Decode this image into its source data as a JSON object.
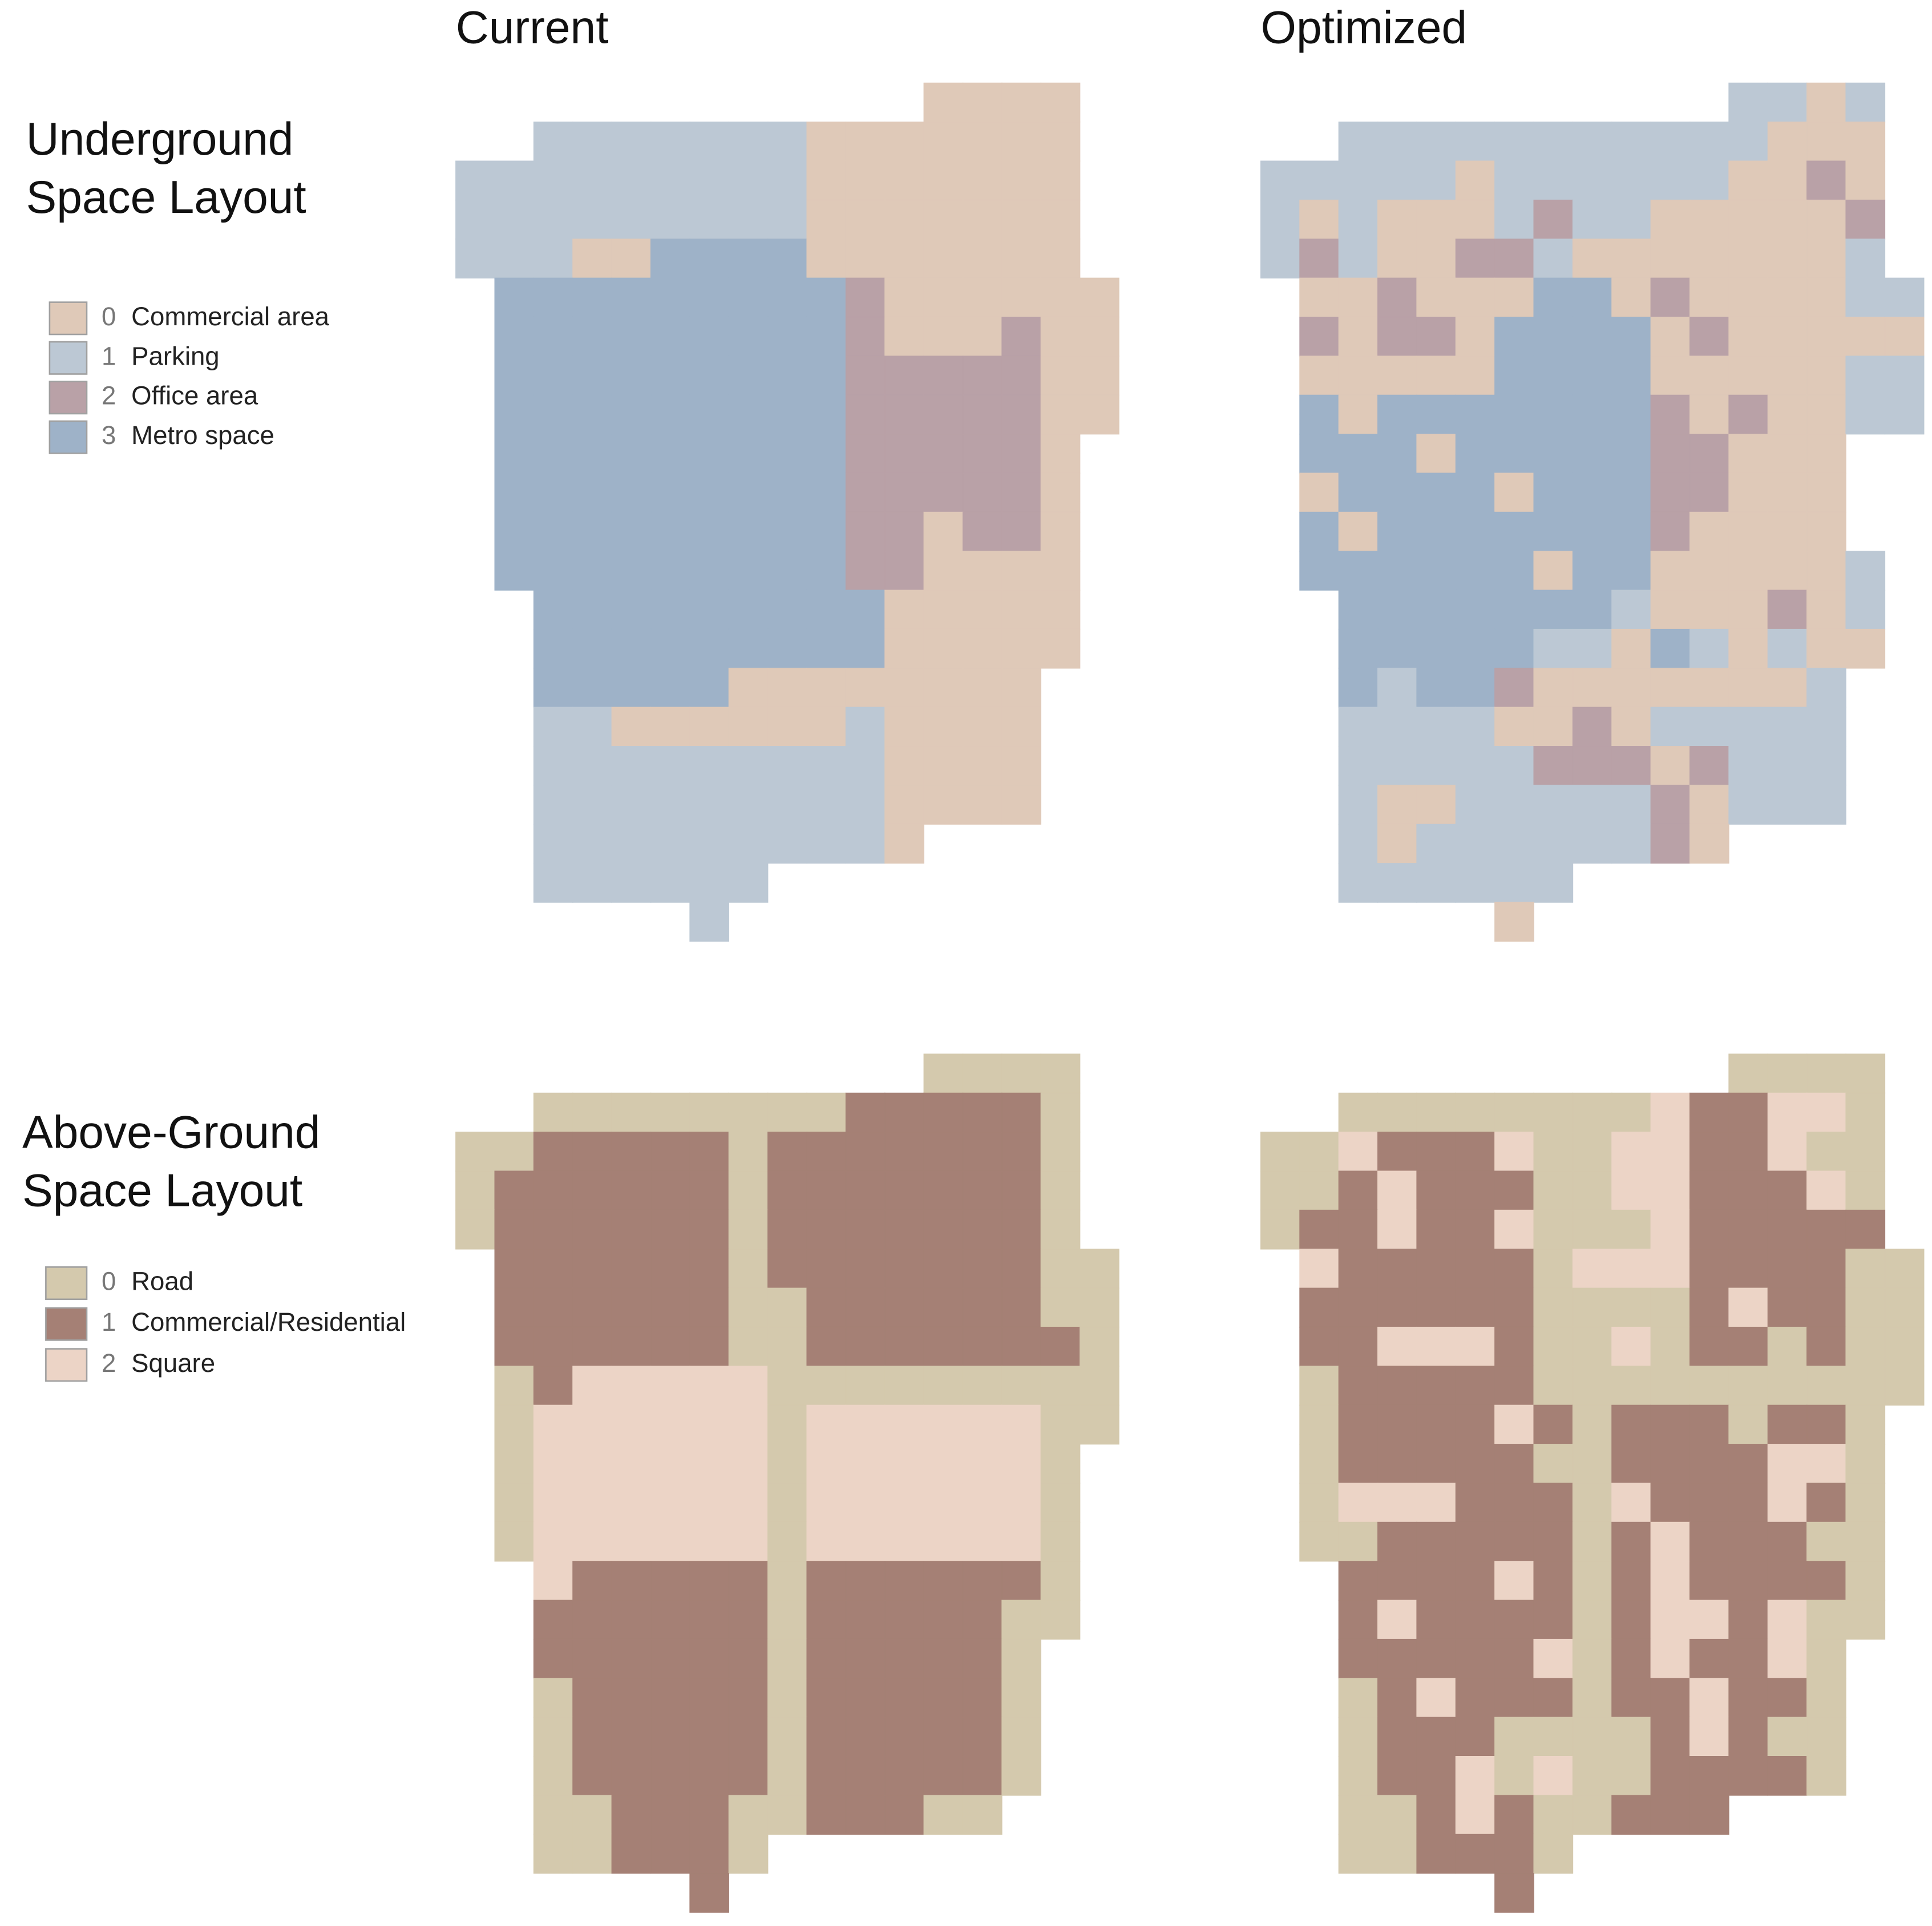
{
  "columns": [
    "Current",
    "Optimized"
  ],
  "rows": [
    {
      "title_lines": [
        "Underground",
        "Space Layout"
      ],
      "legend": [
        {
          "code": 0,
          "label": "Commercial area",
          "color": "#dfc9b8"
        },
        {
          "code": 1,
          "label": "Parking",
          "color": "#bcc8d4"
        },
        {
          "code": 2,
          "label": "Office area",
          "color": "#b9a1a7"
        },
        {
          "code": 3,
          "label": "Metro space",
          "color": "#9eb2c8"
        }
      ],
      "maps": [
        {
          "grid": [
            "............0000.",
            "..11111110000000.",
            "1111111110000000.",
            "1111111110000000.",
            "1110033330000000.",
            ".3333333332000000",
            ".3333333332000200",
            ".3333333332222200",
            ".3333333332222200",
            ".333333333222220.",
            ".333333333222220.",
            ".333333333220220.",
            ".333333333220000.",
            "..33333333300000.",
            "..33333333300000.",
            "..3333300000000..",
            "..1100000010000..",
            "..1111111110000..",
            "..1111111110000..",
            "..1111111110.....",
            "..111111.........",
            "......1.........."
          ]
        },
        {
          "grid": [
            "............1101.",
            "..11111111111000.",
            "1111101111110020.",
            "1010001211000002.",
            "1210022100000001.",
            ".0020003302000011",
            ".2022033330200000",
            ".0000033330000011",
            ".3033333332020011",
            ".33303333322000..",
            ".03333033322000..",
            ".30333333320000..",
            ".333333033000001.",
            "..33333331000201.",
            "..33333110310100.",
            "..3133200000001..",
            "..1111002011111..",
            "..1111122202111..",
            "..1001111120111..",
            "..1011111120.....",
            "..111111.........",
            "......0.........."
          ]
        }
      ]
    },
    {
      "title_lines": [
        "Above-Ground",
        "Space Layout"
      ],
      "legend": [
        {
          "code": 0,
          "label": "Road",
          "color": "#d4c9ad"
        },
        {
          "code": 1,
          "label": "Commercial/Residential",
          "color": "#a58075"
        },
        {
          "code": 2,
          "label": "Square",
          "color": "#ecd4c6"
        }
      ],
      "maps": [
        {
          "grid": [
            "............0000.",
            "..00000000111110.",
            "0011111011111110.",
            "0111111011111110.",
            "0111111011111110.",
            ".1111110111111100",
            ".1111110011111100",
            ".1111110011111110",
            ".0122222000000000",
            ".0222222022222200",
            ".022222202222220.",
            ".022222202222220.",
            ".022222202222220.",
            "..21111101111110.",
            "..11111101111100.",
            "..1111110111110..",
            "..0111110111110..",
            "..0111110111110..",
            "..0111110111110..",
            "..001110011100...",
            "..001110.........",
            "......1.........."
          ]
        },
        {
          "grid": [
            "............0000.",
            "..00000000211220.",
            "0021112002211200.",
            "0012111002211120.",
            "0112112000211111.",
            ".2111110222111100",
            ".1111110000121100",
            ".1122210020110100",
            ".0111110000000000",
            ".011112101110110.",
            ".011111001111220.",
            ".022211102111210.",
            ".001111101211100.",
            "..11112101211110.",
            "..12111101221200.",
            "..1111120121120..",
            "..0121110112110..",
            "..0111000012100..",
            "..0112020011110..",
            "..0012100111.....",
            "..001110.........",
            "......1.........."
          ]
        }
      ]
    }
  ]
}
